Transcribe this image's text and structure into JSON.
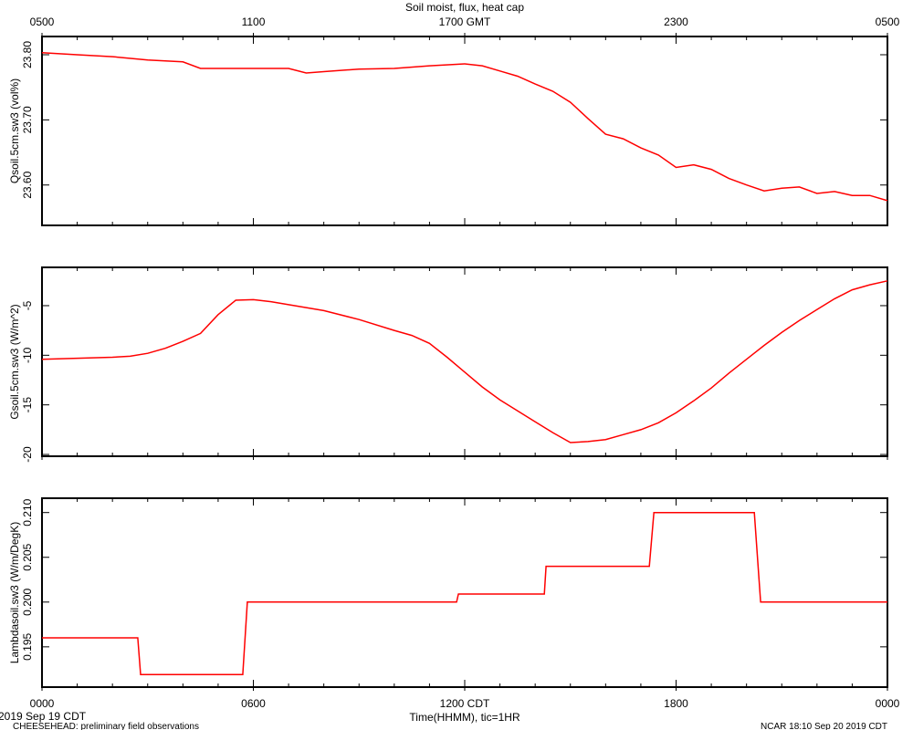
{
  "chart_data": [
    {
      "type": "line",
      "title": "Soil moist, flux, heat cap",
      "ylabel": "Qsoil.5cm.sw3 (vol%)",
      "color": "#ff0000",
      "xlim": [
        0,
        24
      ],
      "xaxis_position": "top",
      "xticks": [
        {
          "value": 0,
          "label": "0500"
        },
        {
          "value": 6,
          "label": "1100"
        },
        {
          "value": 12,
          "label": "1700 GMT"
        },
        {
          "value": 18,
          "label": "2300"
        },
        {
          "value": 24,
          "label": "0500"
        }
      ],
      "xminor": [
        1,
        2,
        3,
        4,
        5,
        7,
        8,
        9,
        10,
        11,
        13,
        14,
        15,
        16,
        17,
        19,
        20,
        21,
        22,
        23
      ],
      "ylim": [
        23.538,
        23.828
      ],
      "yticks": [
        {
          "value": 23.6,
          "label": "23.60"
        },
        {
          "value": 23.7,
          "label": "23.70"
        },
        {
          "value": 23.8,
          "label": "23.80"
        }
      ],
      "x": [
        0,
        1,
        2,
        3,
        4,
        4.5,
        5,
        6,
        7,
        7.5,
        8,
        9,
        10,
        11,
        12,
        12.5,
        13,
        13.5,
        14,
        14.5,
        15,
        15.5,
        16,
        16.5,
        17,
        17.5,
        18,
        18.5,
        19,
        19.5,
        20,
        20.5,
        21,
        21.5,
        22,
        22.5,
        23,
        23.5,
        24
      ],
      "values": [
        23.803,
        23.8,
        23.797,
        23.792,
        23.789,
        23.779,
        23.779,
        23.779,
        23.779,
        23.772,
        23.774,
        23.778,
        23.779,
        23.783,
        23.786,
        23.783,
        23.775,
        23.767,
        23.755,
        23.744,
        23.727,
        23.702,
        23.678,
        23.671,
        23.657,
        23.646,
        23.627,
        23.631,
        23.624,
        23.61,
        23.6,
        23.591,
        23.595,
        23.597,
        23.587,
        23.59,
        23.584,
        23.584,
        23.576
      ]
    },
    {
      "type": "line",
      "ylabel": "Gsoil.5cm.sw3 (W/m^2)",
      "color": "#ff0000",
      "xlim": [
        0,
        24
      ],
      "xaxis_position": "none",
      "xticks": [
        0,
        6,
        12,
        18,
        24
      ],
      "xminor": [
        1,
        2,
        3,
        4,
        5,
        7,
        8,
        9,
        10,
        11,
        13,
        14,
        15,
        16,
        17,
        19,
        20,
        21,
        22,
        23
      ],
      "ylim": [
        -20.18,
        -1.14
      ],
      "yticks": [
        -20,
        -15,
        -10,
        -5
      ],
      "x": [
        0,
        1,
        2,
        2.5,
        3,
        3.5,
        4,
        4.5,
        5,
        5.5,
        6,
        6.5,
        7,
        8,
        9,
        10,
        10.5,
        11,
        11.5,
        12,
        12.5,
        13,
        13.5,
        14,
        14.5,
        15,
        15.5,
        16,
        16.5,
        17,
        17.5,
        18,
        18.5,
        19,
        19.5,
        20,
        20.5,
        21,
        21.5,
        22,
        22.5,
        23,
        23.5,
        24
      ],
      "values": [
        -10.4,
        -10.3,
        -10.2,
        -10.1,
        -9.8,
        -9.3,
        -8.6,
        -7.8,
        -5.9,
        -4.45,
        -4.4,
        -4.6,
        -4.9,
        -5.5,
        -6.4,
        -7.5,
        -8.0,
        -8.8,
        -10.2,
        -11.7,
        -13.2,
        -14.5,
        -15.6,
        -16.7,
        -17.8,
        -18.8,
        -18.7,
        -18.5,
        -18.0,
        -17.5,
        -16.8,
        -15.8,
        -14.6,
        -13.3,
        -11.8,
        -10.4,
        -9.0,
        -7.7,
        -6.5,
        -5.4,
        -4.3,
        -3.4,
        -2.9,
        -2.5
      ]
    },
    {
      "type": "line",
      "ylabel": "Lambdasoil.sw3 (W/m/DegK)",
      "xlabel": "Time(HHMM), tic=1HR",
      "color": "#ff0000",
      "xlim": [
        0,
        24
      ],
      "xaxis_position": "bottom",
      "xticks": [
        {
          "value": 0,
          "label": "0000"
        },
        {
          "value": 6,
          "label": "0600"
        },
        {
          "value": 12,
          "label": "1200 CDT"
        },
        {
          "value": 18,
          "label": "1800"
        },
        {
          "value": 24,
          "label": "0000"
        }
      ],
      "xminor": [
        1,
        2,
        3,
        4,
        5,
        7,
        8,
        9,
        10,
        11,
        13,
        14,
        15,
        16,
        17,
        19,
        20,
        21,
        22,
        23
      ],
      "ylim": [
        0.1905,
        0.2116
      ],
      "yticks": [
        0.195,
        {
          "value": 0.2,
          "label": "0.200"
        },
        0.205,
        {
          "value": 0.21,
          "label": "0.210"
        }
      ],
      "x": [
        0,
        2.72,
        2.8,
        5.7,
        5.83,
        11.77,
        11.82,
        14.26,
        14.31,
        17.24,
        17.37,
        20.22,
        20.4,
        24
      ],
      "values": [
        0.196,
        0.196,
        0.1919,
        0.1919,
        0.2,
        0.2,
        0.2009,
        0.2009,
        0.204,
        0.204,
        0.21,
        0.21,
        0.2,
        0.2
      ]
    }
  ],
  "footer": {
    "date": "2019 Sep 19 CDT",
    "project": "CHEESEHEAD: preliminary field observations",
    "stamp": "NCAR 18:10 Sep 20 2019 CDT"
  }
}
